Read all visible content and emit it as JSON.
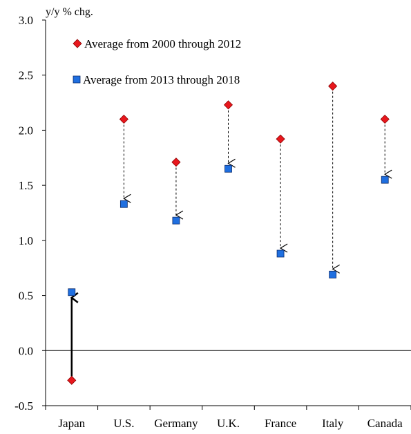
{
  "chart_data": {
    "type": "scatter",
    "ylabel": "y/y % chg.",
    "ylim": [
      -0.5,
      3.0
    ],
    "yticks": [
      "3.0",
      "2.5",
      "2.0",
      "1.5",
      "1.0",
      "0.5",
      "0.0",
      "-0.5"
    ],
    "categories": [
      "Japan",
      "U.S.",
      "Germany",
      "U.K.",
      "France",
      "Italy",
      "Canada"
    ],
    "series": [
      {
        "name": "Average from 2000 through 2012",
        "marker": "diamond",
        "color": "#e8171d",
        "values": [
          -0.27,
          2.1,
          1.71,
          2.23,
          1.92,
          2.4,
          2.1
        ]
      },
      {
        "name": "Average from 2013 through 2018",
        "marker": "square",
        "color": "#1f6fe0",
        "values": [
          0.53,
          1.33,
          1.18,
          1.65,
          0.88,
          0.69,
          1.55
        ]
      }
    ],
    "grid": false,
    "legend_position": "top-left"
  }
}
